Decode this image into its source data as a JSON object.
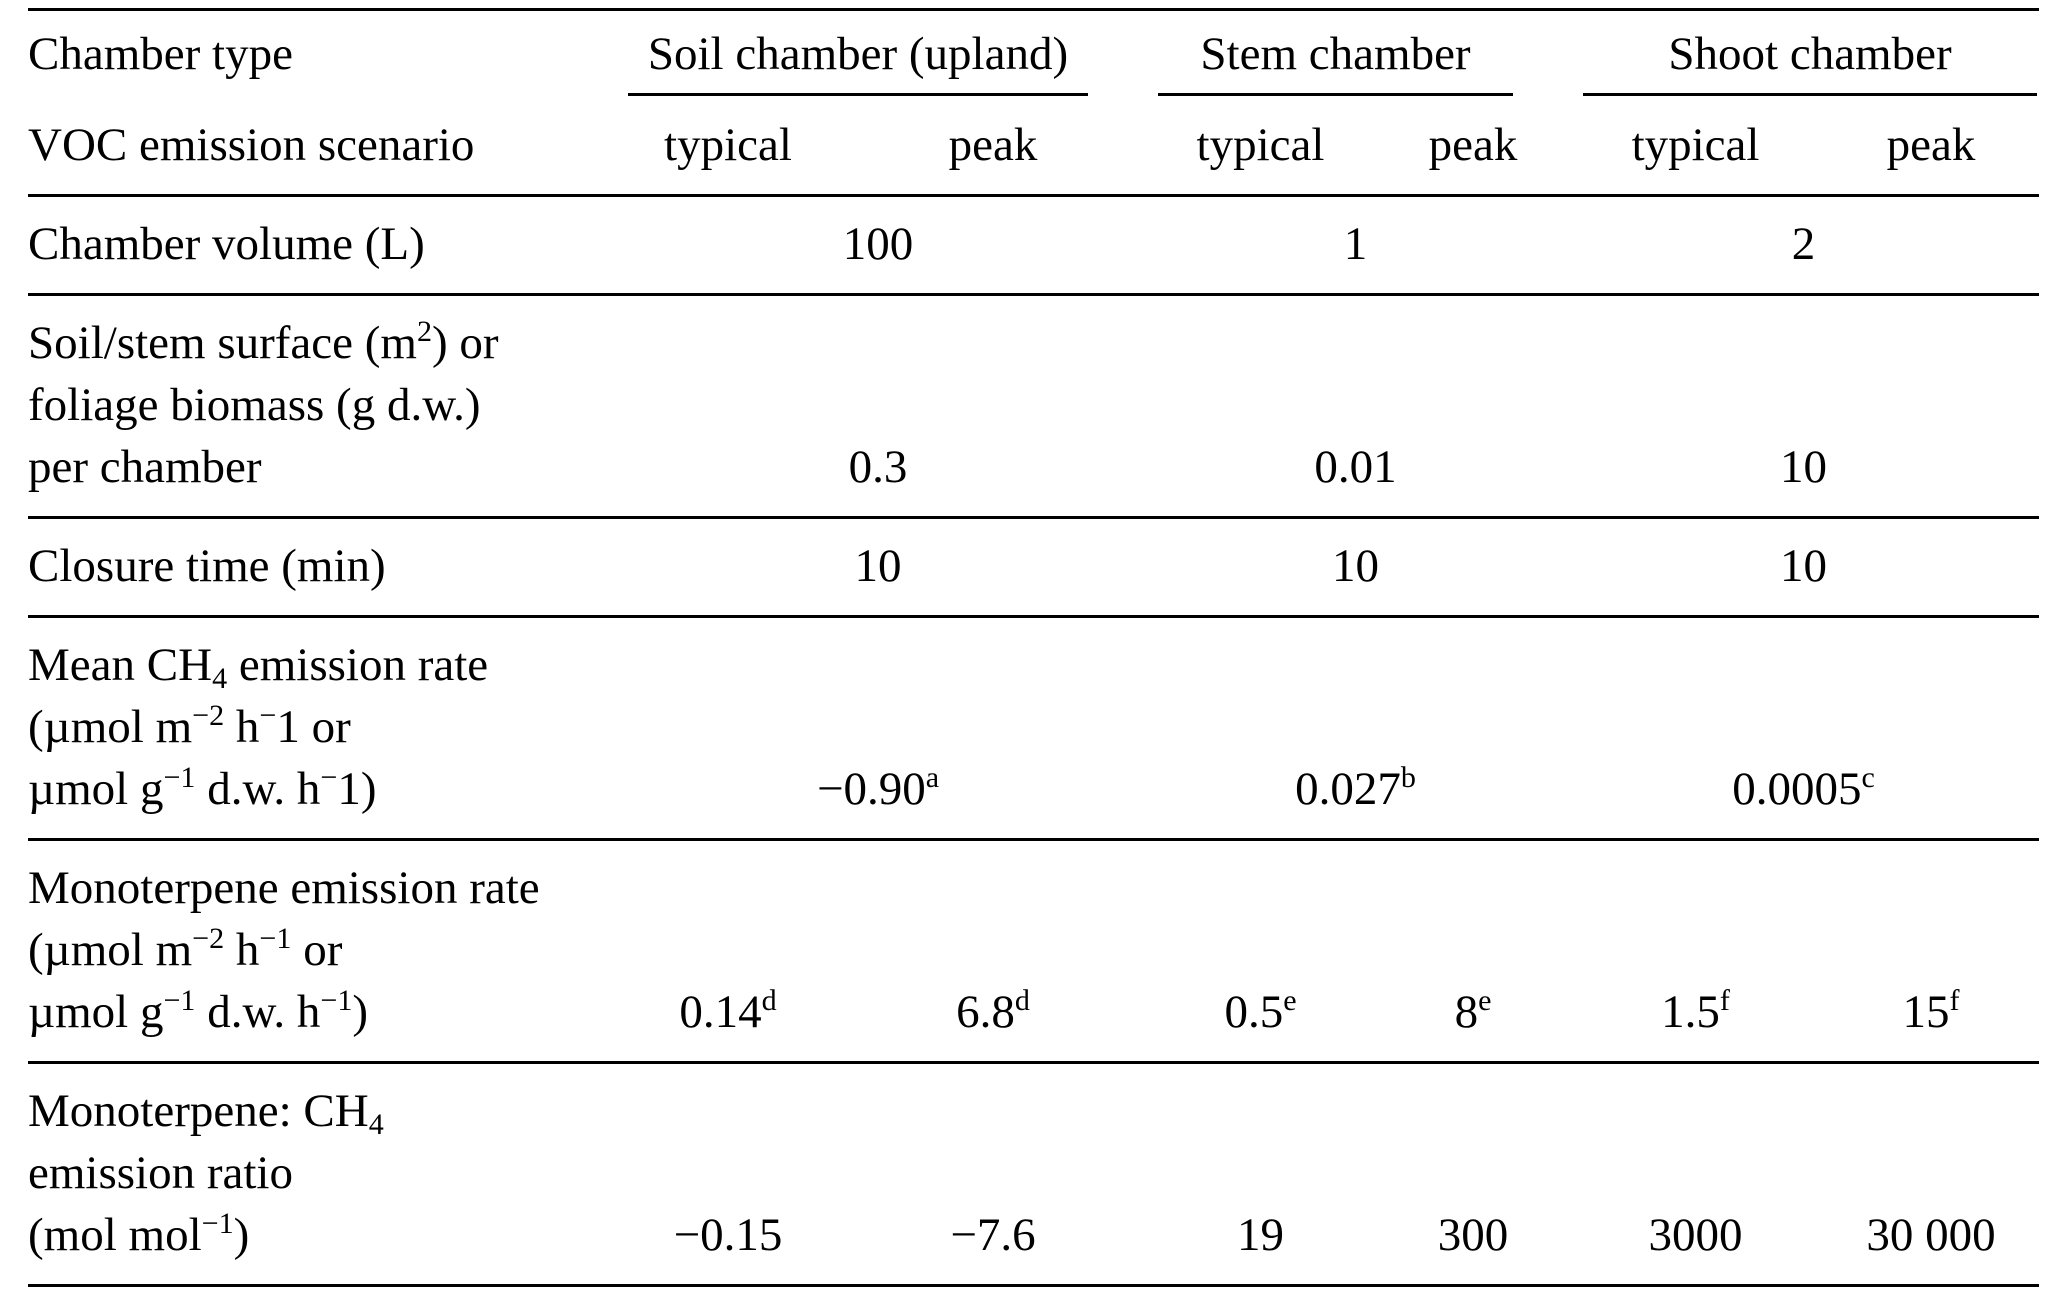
{
  "page": {
    "background": "#ffffff",
    "text_color": "#000000",
    "rule_color": "#000000"
  },
  "table": {
    "header": {
      "row1_label": "Chamber type",
      "row2_label": "VOC emission scenario",
      "groups": [
        {
          "label": "Soil chamber (upland)",
          "columns": [
            "typical",
            "peak"
          ]
        },
        {
          "label": "Stem chamber",
          "columns": [
            "typical",
            "peak"
          ]
        },
        {
          "label": "Shoot chamber",
          "columns": [
            "typical",
            "peak"
          ]
        }
      ]
    },
    "rows": [
      {
        "label": [
          {
            "t": "Chamber volume (L)"
          }
        ],
        "cells": [
          [
            {
              "t": "100"
            }
          ],
          [
            {
              "t": "1"
            }
          ],
          [
            {
              "t": "2"
            }
          ]
        ]
      },
      {
        "label": [
          {
            "t": "Soil/stem surface (m"
          },
          {
            "t": "2",
            "s": "sup"
          },
          {
            "t": ") or"
          },
          {
            "br": true
          },
          {
            "t": "foliage biomass (g d.w.)"
          },
          {
            "br": true
          },
          {
            "t": "per chamber"
          }
        ],
        "cells": [
          [
            {
              "t": "0.3"
            }
          ],
          [
            {
              "t": "0.01"
            }
          ],
          [
            {
              "t": "10"
            }
          ]
        ]
      },
      {
        "label": [
          {
            "t": "Closure time (min)"
          }
        ],
        "cells": [
          [
            {
              "t": "10"
            }
          ],
          [
            {
              "t": "10"
            }
          ],
          [
            {
              "t": "10"
            }
          ]
        ]
      },
      {
        "label": [
          {
            "t": "Mean CH"
          },
          {
            "t": "4",
            "s": "sub"
          },
          {
            "t": " emission rate"
          },
          {
            "br": true
          },
          {
            "t": "(µmol m"
          },
          {
            "t": "−2",
            "s": "sup"
          },
          {
            "t": " h"
          },
          {
            "t": "−",
            "s": "sup"
          },
          {
            "t": "1 or"
          },
          {
            "br": true
          },
          {
            "t": "µmol g"
          },
          {
            "t": "−1",
            "s": "sup"
          },
          {
            "t": " d.w. h"
          },
          {
            "t": "−",
            "s": "sup"
          },
          {
            "t": "1)"
          }
        ],
        "cells": [
          [
            {
              "t": "−0.90"
            },
            {
              "t": "a",
              "s": "sup"
            }
          ],
          [
            {
              "t": "0.027"
            },
            {
              "t": "b",
              "s": "sup"
            }
          ],
          [
            {
              "t": "0.0005"
            },
            {
              "t": "c",
              "s": "sup"
            }
          ]
        ]
      },
      {
        "label": [
          {
            "t": "Monoterpene emission rate"
          },
          {
            "br": true
          },
          {
            "t": "(µmol m"
          },
          {
            "t": "−2",
            "s": "sup"
          },
          {
            "t": " h"
          },
          {
            "t": "−1",
            "s": "sup"
          },
          {
            "t": " or"
          },
          {
            "br": true
          },
          {
            "t": "µmol g"
          },
          {
            "t": "−1",
            "s": "sup"
          },
          {
            "t": " d.w. h"
          },
          {
            "t": "−1",
            "s": "sup"
          },
          {
            "t": ")"
          }
        ],
        "cells": [
          [
            {
              "t": "0.14"
            },
            {
              "t": "d",
              "s": "sup"
            }
          ],
          [
            {
              "t": "6.8"
            },
            {
              "t": "d",
              "s": "sup"
            }
          ],
          [
            {
              "t": "0.5"
            },
            {
              "t": "e",
              "s": "sup"
            }
          ],
          [
            {
              "t": "8"
            },
            {
              "t": "e",
              "s": "sup"
            }
          ],
          [
            {
              "t": "1.5"
            },
            {
              "t": "f",
              "s": "sup"
            }
          ],
          [
            {
              "t": "15"
            },
            {
              "t": "f",
              "s": "sup"
            }
          ]
        ]
      },
      {
        "label": [
          {
            "t": "Monoterpene: CH"
          },
          {
            "t": "4",
            "s": "sub"
          },
          {
            "br": true
          },
          {
            "t": "emission ratio"
          },
          {
            "br": true
          },
          {
            "t": "(mol mol"
          },
          {
            "t": "−1",
            "s": "sup"
          },
          {
            "t": ")"
          }
        ],
        "cells": [
          [
            {
              "t": "−0.15"
            }
          ],
          [
            {
              "t": "−7.6"
            }
          ],
          [
            {
              "t": "19"
            }
          ],
          [
            {
              "t": "300"
            }
          ],
          [
            {
              "t": "3000"
            }
          ],
          [
            {
              "t": "30 000"
            }
          ]
        ]
      }
    ]
  }
}
